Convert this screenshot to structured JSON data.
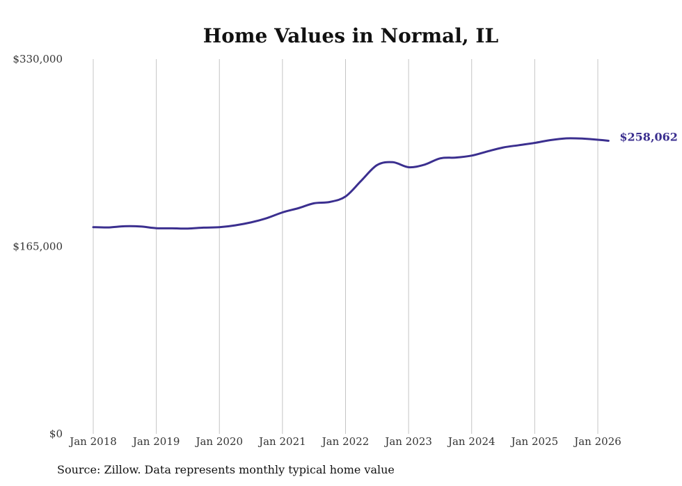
{
  "chart_data": {
    "type": "line",
    "title": "Home Values in Normal, IL",
    "xlabel": "",
    "ylabel": "",
    "ylim": [
      0,
      330000
    ],
    "xlim": [
      2018.0,
      2026.2
    ],
    "y_ticks": [
      0,
      165000,
      330000
    ],
    "y_tick_labels": [
      "$0",
      "$165,000",
      "$330,000"
    ],
    "x_ticks": [
      2018,
      2019,
      2020,
      2021,
      2022,
      2023,
      2024,
      2025,
      2026
    ],
    "x_tick_labels": [
      "Jan 2018",
      "Jan 2019",
      "Jan 2020",
      "Jan 2021",
      "Jan 2022",
      "Jan 2023",
      "Jan 2024",
      "Jan 2025",
      "Jan 2026"
    ],
    "grid": true,
    "series": [
      {
        "name": "Typical home value",
        "color": "#3b2f8f",
        "x": [
          2018.0,
          2018.25,
          2018.5,
          2018.75,
          2019.0,
          2019.25,
          2019.5,
          2019.75,
          2020.0,
          2020.25,
          2020.5,
          2020.75,
          2021.0,
          2021.25,
          2021.5,
          2021.75,
          2022.0,
          2022.25,
          2022.5,
          2022.75,
          2023.0,
          2023.25,
          2023.5,
          2023.75,
          2024.0,
          2024.25,
          2024.5,
          2024.75,
          2025.0,
          2025.25,
          2025.5,
          2025.75,
          2026.0,
          2026.17
        ],
        "y": [
          182000,
          181800,
          182800,
          182600,
          181100,
          181000,
          180800,
          181600,
          182000,
          183600,
          186200,
          189900,
          195000,
          198700,
          203000,
          204200,
          209000,
          223000,
          236700,
          239200,
          234800,
          237000,
          242600,
          243300,
          245000,
          248700,
          252200,
          254200,
          256200,
          258700,
          260200,
          260000,
          259000,
          258062
        ]
      }
    ],
    "end_label": "$258,062"
  },
  "source_text": "Source: Zillow. Data represents monthly typical home value"
}
